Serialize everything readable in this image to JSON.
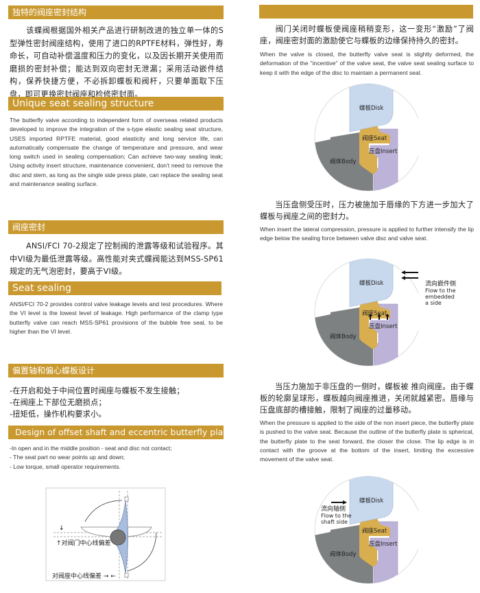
{
  "left": {
    "s1": {
      "title": "独特的阀座密封结构",
      "body": "该蝶阀根据国外相关产品进行研制改进的独立单一体的S型弹性密封阀座结构，使用了进口的RPTFE材料，弹性好，寿命长，可自动补偿温度和压力的变化，以及因长期开关使用而磨损的密封补偿；能达到双向密封无泄漏；采用活动嵌件结构，保养快捷方便，不必拆卸蝶板和阀杆，只要单面取下压盘，即可更换密封阀座和检修密封面。"
    },
    "s2": {
      "title": "Unique seat sealing structure",
      "body": "The butterfly valve according to independent form of overseas related products developed to improve the integration of the s-type elastic sealing seat structure, USES imported RPTFE material, good elasticity and long service life, can automatically compensate the change of temperature and pressure, and wear long switch used in sealing compensation; Can achieve two-way sealing leak; Using activity insert structure, maintenance convenient, don't need to remove the disc and stem, as long as the single side press plate, can replace the sealing seat and maintenance sealing surface."
    },
    "s3": {
      "title": "阀座密封",
      "body": "ANSI/FCI 70-2规定了控制阀的泄露等级和试验程序。其中VI级为最低泄露等级。高性能对夹式蝶阀能达到MSS-SP61规定的无气泡密封，要高于VI级。"
    },
    "s4": {
      "title": "Seat sealing",
      "body": "ANSI/FCI 70-2 provides control valve leakage levels and test procedures. Where the VI level is the lowest level of leakage. High performance of the clamp type butterfly valve can reach MSS-SP61 provisions of the bubble free seal, to be higher than the VI level."
    },
    "s5": {
      "title": "偏置轴和偏心蝶板设计",
      "items": [
        "-在开启和处于中间位置时阀座与蝶板不发生接触；",
        "-在阀座上下部位无磨损点；",
        "-扭矩低，操作机构要求小。"
      ]
    },
    "s6": {
      "title": "Design of offset shaft and eccentric butterfly plate",
      "items": [
        "-In open and in the middle position - seat and disc not contact;",
        "- The seat part no wear points up and down;",
        "- Low torque, small operator requirements."
      ]
    },
    "figure": {
      "label_valve": "对阀门中心线偏差",
      "label_seat": "对阀座中心线偏差"
    }
  },
  "right": {
    "p1": {
      "zh": "阀门关闭时蝶板使阀座稍稍变形，这一变形“激励”了阀座，阀座密封面的激励使它与蝶板的边缘保持持久的密封。",
      "en": "When the valve is closed, the butterfly valve seat is slightly deformed, the deformation of the \"incentive\" of the valve seat, the valve seat sealing surface to keep it with the edge of the disc to maintain a permanent seal."
    },
    "p2": {
      "zh": "当压盘侧受压时，压力被施加于唇缘的下方进一步加大了蝶板与阀座之间的密封力。",
      "en": "When insert the lateral compression, pressure is applied to further intensify the lip edge below the sealing force between valve disc and valve seat."
    },
    "p3": {
      "zh": "当压力施加于非压盘的一侧时，蝶板被 推向阀座。由于蝶板的轮廓呈球形，蝶板越向阀座推进，关闭就越紧密。唇缘与压盘底部的槽接触，限制了阀座的过量移动。",
      "en": "When the pressure is applied to the side of the non insert piece, the butterfly plate is pushed to the valve seat. Because the outline of the butterfly plate is spherical, the butterfly plate to the seat forward, the closer the close. The lip edge is in contact with the groove at the bottom of the insert, limiting the excessive movement of the valve seat."
    },
    "labels": {
      "disk": "蝶板Disk",
      "seat": "阀座Seat",
      "insert": "压盘Insert",
      "body": "阀体Body"
    },
    "flow2": [
      "流向嵌件侧",
      "Flow to the",
      "embedded",
      "a side"
    ],
    "flow3": [
      "流向轴侧",
      "Flow to the",
      "shaft side"
    ]
  },
  "colors": {
    "bar": "#C9982F",
    "disk": "#C8D9EE",
    "seat": "#D9AE4E",
    "insert": "#BDB3D8",
    "body": "#7E8182"
  }
}
